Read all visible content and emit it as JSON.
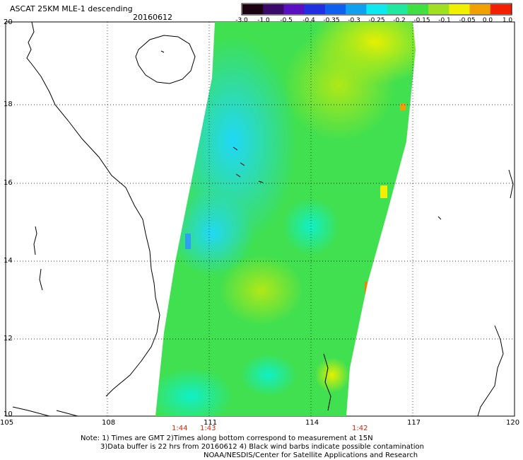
{
  "header": {
    "title": "ASCAT 25KM MLE-1 descending",
    "date": "20160612"
  },
  "colorbar": {
    "labels": [
      "-3.0",
      "-1.0",
      "-0.5",
      "-0.4",
      "-0.35",
      "-0.3",
      "-0.25",
      "-0.2",
      "-0.15",
      "-0.1",
      "-0.05",
      "0.0",
      "1.0"
    ],
    "colors": [
      "#1a0010",
      "#3a0a6a",
      "#5a10c0",
      "#2030e0",
      "#1060f0",
      "#10a0f0",
      "#10e8f0",
      "#20e8a0",
      "#40e040",
      "#a0e020",
      "#f0f000",
      "#f0a000",
      "#f02000"
    ]
  },
  "map": {
    "lat_labels": [
      "20",
      "18",
      "16",
      "14",
      "12",
      "10"
    ],
    "lon_labels": [
      "105",
      "108",
      "111",
      "114",
      "117",
      "120"
    ]
  },
  "times": [
    {
      "label": "1:44"
    },
    {
      "label": "1:43"
    },
    {
      "label": "1:42"
    }
  ],
  "footer": {
    "line1": "Note: 1) Times are GMT 2)Times along bottom correspond to measurement at 15N",
    "line2": "3)Data buffer is 22 hrs from 20160612 4) Black wind barbs indicate possible contamination",
    "line3": "NOAA/NESDIS/Center for Satellite Applications and Research"
  }
}
